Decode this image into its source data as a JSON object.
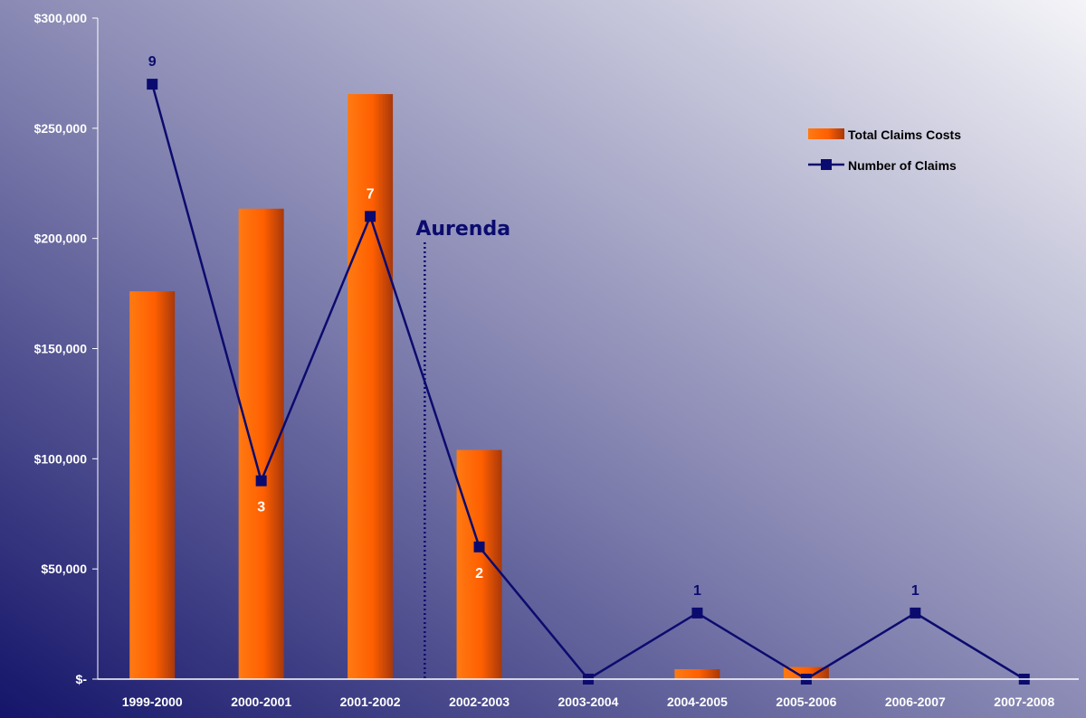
{
  "chart_data": {
    "type": "bar",
    "categories": [
      "1999-2000",
      "2000-2001",
      "2001-2002",
      "2002-2003",
      "2003-2004",
      "2004-2005",
      "2005-2006",
      "2006-2007",
      "2007-2008"
    ],
    "ylim": [
      0,
      300000
    ],
    "y_ticks": [
      0,
      50000,
      100000,
      150000,
      200000,
      250000,
      300000
    ],
    "y_tick_labels": [
      "$-",
      "$50,000",
      "$100,000",
      "$150,000",
      "$200,000",
      "$250,000",
      "$300,000"
    ],
    "series": [
      {
        "name": "Total Claims Costs",
        "type": "bar",
        "values": [
          176000,
          213500,
          265500,
          104000,
          0,
          4500,
          5500,
          0,
          0
        ],
        "color": "#ff6a00"
      },
      {
        "name": "Number of Claims",
        "type": "line",
        "values": [
          9,
          3,
          7,
          2,
          0,
          1,
          0,
          1,
          0
        ],
        "color": "#0b0b6f"
      }
    ],
    "secondary_axis_shown": false,
    "point_labels": [
      {
        "index": 0,
        "text": "9",
        "position": "above",
        "color": "#0b0b6f"
      },
      {
        "index": 1,
        "text": "3",
        "position": "below",
        "color": "#ffffff"
      },
      {
        "index": 2,
        "text": "7",
        "position": "above",
        "color": "#ffffff"
      },
      {
        "index": 3,
        "text": "2",
        "position": "below",
        "color": "#ffffff"
      },
      {
        "index": 5,
        "text": "1",
        "position": "above",
        "color": "#0b0b6f"
      },
      {
        "index": 7,
        "text": "1",
        "position": "above",
        "color": "#0b0b6f"
      }
    ],
    "annotation": {
      "text": "Aurenda",
      "after_index": 2,
      "style": "dotted vertical line"
    },
    "legend": {
      "placement": "top-right"
    },
    "grid": false
  }
}
